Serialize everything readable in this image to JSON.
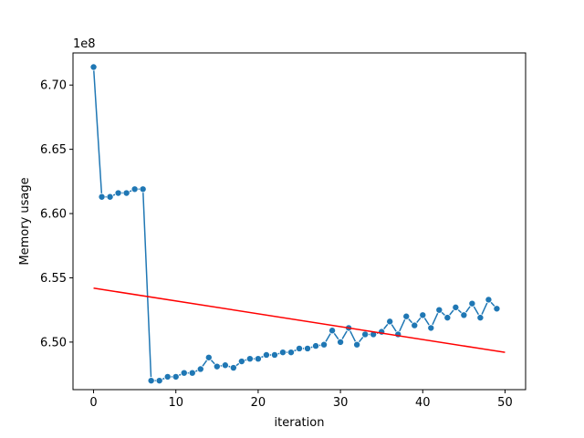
{
  "chart_data": {
    "type": "line",
    "xlabel": "iteration",
    "ylabel": "Memory usage",
    "y_offset_label": "1e8",
    "xlim": [
      -2.5,
      52.5
    ],
    "ylim": [
      6.463,
      6.725
    ],
    "x_ticks": [
      0,
      10,
      20,
      30,
      40,
      50
    ],
    "x_tick_labels": [
      "0",
      "10",
      "20",
      "30",
      "40",
      "50"
    ],
    "y_ticks": [
      6.5,
      6.55,
      6.6,
      6.65,
      6.7
    ],
    "y_tick_labels": [
      "6.50",
      "6.55",
      "6.60",
      "6.65",
      "6.70"
    ],
    "grid": false,
    "series": [
      {
        "color": "#1f77b4",
        "marker": "circle",
        "x": [
          0,
          1,
          2,
          3,
          4,
          5,
          6,
          7,
          8,
          9,
          10,
          11,
          12,
          13,
          14,
          15,
          16,
          17,
          18,
          19,
          20,
          21,
          22,
          23,
          24,
          25,
          26,
          27,
          28,
          29,
          30,
          31,
          32,
          33,
          34,
          35,
          36,
          37,
          38,
          39,
          40,
          41,
          42,
          43,
          44,
          45,
          46,
          47,
          48,
          49
        ],
        "y": [
          6.714,
          6.613,
          6.613,
          6.616,
          6.616,
          6.619,
          6.619,
          6.47,
          6.47,
          6.473,
          6.473,
          6.476,
          6.476,
          6.479,
          6.488,
          6.481,
          6.482,
          6.48,
          6.485,
          6.487,
          6.487,
          6.49,
          6.49,
          6.492,
          6.492,
          6.495,
          6.495,
          6.497,
          6.498,
          6.509,
          6.5,
          6.511,
          6.498,
          6.506,
          6.506,
          6.508,
          6.516,
          6.506,
          6.52,
          6.513,
          6.521,
          6.511,
          6.525,
          6.519,
          6.527,
          6.521,
          6.53,
          6.519,
          6.533,
          6.526
        ]
      },
      {
        "color": "#ff0000",
        "marker": "none",
        "x": [
          0,
          50
        ],
        "y": [
          6.542,
          6.492
        ]
      }
    ]
  }
}
